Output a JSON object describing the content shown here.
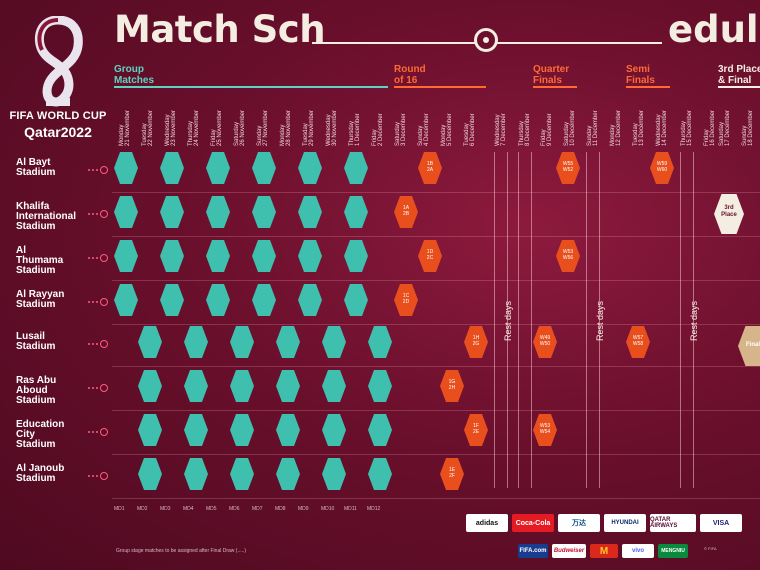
{
  "logo": {
    "line1": "FIFA WORLD CUP",
    "line2": "Qatar2022"
  },
  "title": {
    "left": "Match Sch",
    "right": "edule"
  },
  "stages": [
    {
      "label": "Group\nMatches",
      "kind": "group"
    },
    {
      "label": "Round\nof 16",
      "kind": "knock"
    },
    {
      "label": "Quarter\nFinals",
      "kind": "knock"
    },
    {
      "label": "Semi\nFinals",
      "kind": "knock"
    },
    {
      "label": "3rd Place\n& Final",
      "kind": "final"
    }
  ],
  "days": [
    "Monday\n21 November",
    "Tuesday\n22 November",
    "Wednesday\n23 November",
    "Thursday\n24 November",
    "Friday\n25 November",
    "Saturday\n26 November",
    "Sunday\n27 November",
    "Monday\n28 November",
    "Tuesday\n29 November",
    "Wednesday\n30 November",
    "Thursday\n1 December",
    "Friday\n2 December",
    "Saturday\n3 December",
    "Sunday\n4 December",
    "Monday\n5 December",
    "Tuesday\n6 December",
    "Wednesday\n7 December",
    "Thursday\n8 December",
    "Friday\n9 December",
    "Saturday\n10 December",
    "Sunday\n11 December",
    "Monday\n12 December",
    "Tuesday\n13 December",
    "Wednesday\n14 December",
    "Thursday\n15 December",
    "Friday\n16 December",
    "Saturday\n17 December",
    "Sunday\n18 December"
  ],
  "stadiums": [
    {
      "name": "Al Bayt\nStadium"
    },
    {
      "name": "Khalifa\nInternational\nStadium"
    },
    {
      "name": "Al\nThumama\nStadium"
    },
    {
      "name": "Al Rayyan\nStadium"
    },
    {
      "name": "Lusail\nStadium"
    },
    {
      "name": "Ras Abu\nAboud\nStadium"
    },
    {
      "name": "Education\nCity\nStadium"
    },
    {
      "name": "Al Janoub\nStadium"
    }
  ],
  "knockout": [
    {
      "text": "1B\n2A"
    },
    {
      "text": "1A\n2B"
    },
    {
      "text": "1D\n2C"
    },
    {
      "text": "1C\n2D"
    },
    {
      "text": "1H\n2G"
    },
    {
      "text": "1G\n2H"
    },
    {
      "text": "1F\n2E"
    },
    {
      "text": "1E\n2F"
    },
    {
      "text": "W55\nW52"
    },
    {
      "text": "W53\nW56"
    },
    {
      "text": "W49\nW50"
    },
    {
      "text": "W53\nW54"
    },
    {
      "text": "W59\nW60"
    },
    {
      "text": "W57\nW58"
    }
  ],
  "third_place": "3rd\nPlace",
  "final": "Final",
  "rest_days": [
    "Rest days",
    "Rest days",
    "Rest days",
    "Rest days"
  ],
  "codes": [
    "MD1",
    "MD2",
    "MD3",
    "MD4",
    "MD5",
    "MD6",
    "MD7",
    "MD8",
    "MD9",
    "MD10",
    "MD11",
    "MD12"
  ],
  "note": "Group stage matches to be assigned after Final Draw (.....)",
  "sponsors_top": [
    "adidas",
    "Coca-Cola",
    "万达",
    "HYUNDAI",
    "QATAR AIRWAYS",
    "VISA"
  ],
  "sponsors_bottom": [
    "FIFA.com",
    "Budweiser",
    "M",
    "vivo",
    "MENGNIU"
  ],
  "fine": "© FIFA"
}
